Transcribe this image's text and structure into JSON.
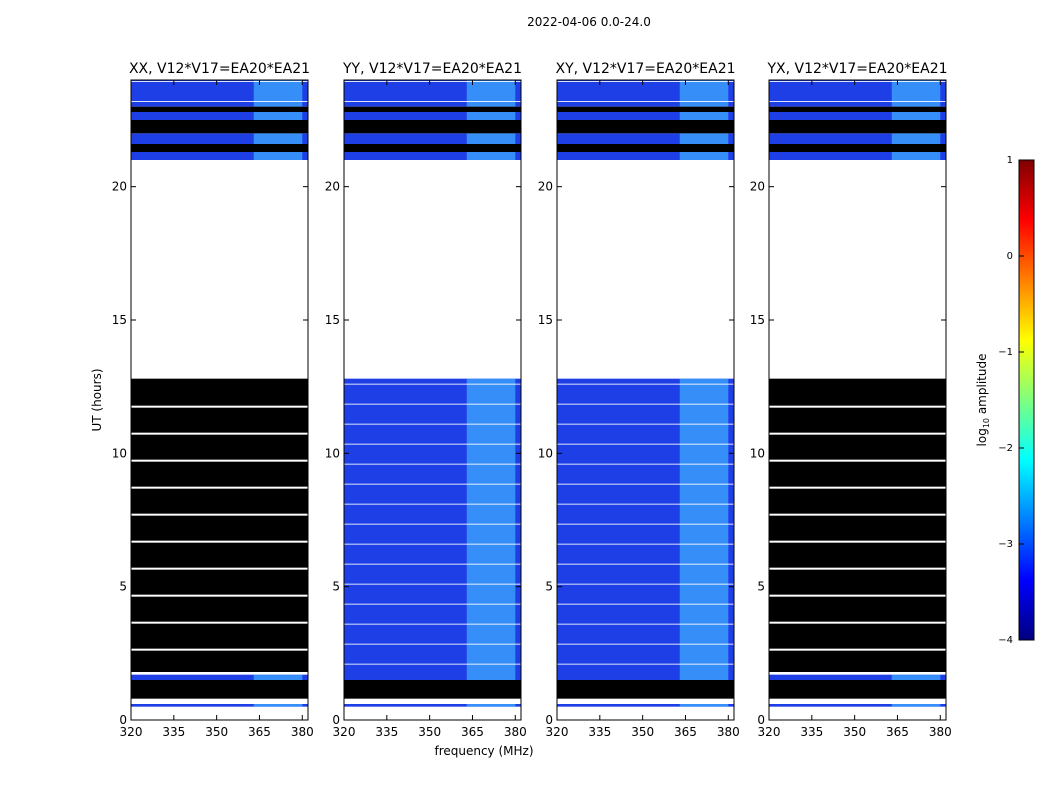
{
  "suptitle": "2022-04-06 0.0-24.0",
  "chart_data": [
    {
      "type": "heatmap",
      "title": "XX, V12*V17=EA20*EA21",
      "xlabel": "",
      "ylabel": "UT (hours)",
      "xlim": [
        320,
        382
      ],
      "ylim": [
        0,
        24
      ],
      "xticks": [
        320,
        335,
        350,
        365,
        380
      ],
      "yticks": [
        0,
        5,
        10,
        15,
        20
      ],
      "rfi_band_mhz": [
        363,
        380
      ],
      "data_segments_ut": [
        [
          0.5,
          0.6
        ],
        [
          1.5,
          1.7
        ],
        [
          21.0,
          21.3
        ],
        [
          21.6,
          22.0
        ],
        [
          22.5,
          22.8
        ],
        [
          23.0,
          24.0
        ]
      ],
      "flagged_segments_ut": [
        [
          0.8,
          1.5
        ],
        [
          1.8,
          12.8
        ],
        [
          21.3,
          21.6
        ],
        [
          22.0,
          22.5
        ],
        [
          22.8,
          23.0
        ]
      ]
    },
    {
      "type": "heatmap",
      "title": "YY, V12*V17=EA20*EA21",
      "xlabel": "frequency (MHz)",
      "ylabel": "",
      "xlim": [
        320,
        382
      ],
      "ylim": [
        0,
        24
      ],
      "xticks": [
        320,
        335,
        350,
        365,
        380
      ],
      "yticks": [
        0,
        5,
        10,
        15,
        20
      ],
      "rfi_band_mhz": [
        363,
        380
      ],
      "data_segments_ut": [
        [
          0.5,
          0.6
        ],
        [
          1.5,
          12.8
        ],
        [
          21.0,
          21.3
        ],
        [
          21.6,
          22.0
        ],
        [
          22.5,
          22.8
        ],
        [
          23.0,
          24.0
        ]
      ],
      "flagged_segments_ut": [
        [
          0.8,
          1.5
        ],
        [
          21.3,
          21.6
        ],
        [
          22.0,
          22.5
        ],
        [
          22.8,
          23.0
        ]
      ]
    },
    {
      "type": "heatmap",
      "title": "XY, V12*V17=EA20*EA21",
      "xlabel": "",
      "ylabel": "",
      "xlim": [
        320,
        382
      ],
      "ylim": [
        0,
        24
      ],
      "xticks": [
        320,
        335,
        350,
        365,
        380
      ],
      "yticks": [
        0,
        5,
        10,
        15,
        20
      ],
      "rfi_band_mhz": [
        363,
        380
      ],
      "data_segments_ut": [
        [
          0.5,
          0.6
        ],
        [
          1.5,
          12.8
        ],
        [
          21.0,
          21.3
        ],
        [
          21.6,
          22.0
        ],
        [
          22.5,
          22.8
        ],
        [
          23.0,
          24.0
        ]
      ],
      "flagged_segments_ut": [
        [
          0.8,
          1.5
        ],
        [
          21.3,
          21.6
        ],
        [
          22.0,
          22.5
        ],
        [
          22.8,
          23.0
        ]
      ]
    },
    {
      "type": "heatmap",
      "title": "YX, V12*V17=EA20*EA21",
      "xlabel": "",
      "ylabel": "",
      "xlim": [
        320,
        382
      ],
      "ylim": [
        0,
        24
      ],
      "xticks": [
        320,
        335,
        350,
        365,
        380
      ],
      "yticks": [
        0,
        5,
        10,
        15,
        20
      ],
      "rfi_band_mhz": [
        363,
        380
      ],
      "data_segments_ut": [
        [
          0.5,
          0.6
        ],
        [
          1.5,
          1.7
        ],
        [
          21.0,
          21.3
        ],
        [
          21.6,
          22.0
        ],
        [
          22.5,
          22.8
        ],
        [
          23.0,
          24.0
        ]
      ],
      "flagged_segments_ut": [
        [
          0.8,
          1.5
        ],
        [
          1.8,
          12.8
        ],
        [
          21.3,
          21.6
        ],
        [
          22.0,
          22.5
        ],
        [
          22.8,
          23.0
        ]
      ]
    }
  ],
  "colorbar": {
    "label_prefix": "log",
    "label_sub": "10",
    "label_suffix": " amplitude",
    "range": [
      -4,
      1
    ],
    "ticks": [
      "1",
      "0",
      "−1",
      "−2",
      "−3",
      "−4"
    ],
    "colormap": "jet",
    "colors": [
      "#00007f",
      "#0000ff",
      "#007fff",
      "#00ffff",
      "#7fff7f",
      "#ffff00",
      "#ff7f00",
      "#ff0000",
      "#7f0000"
    ]
  }
}
